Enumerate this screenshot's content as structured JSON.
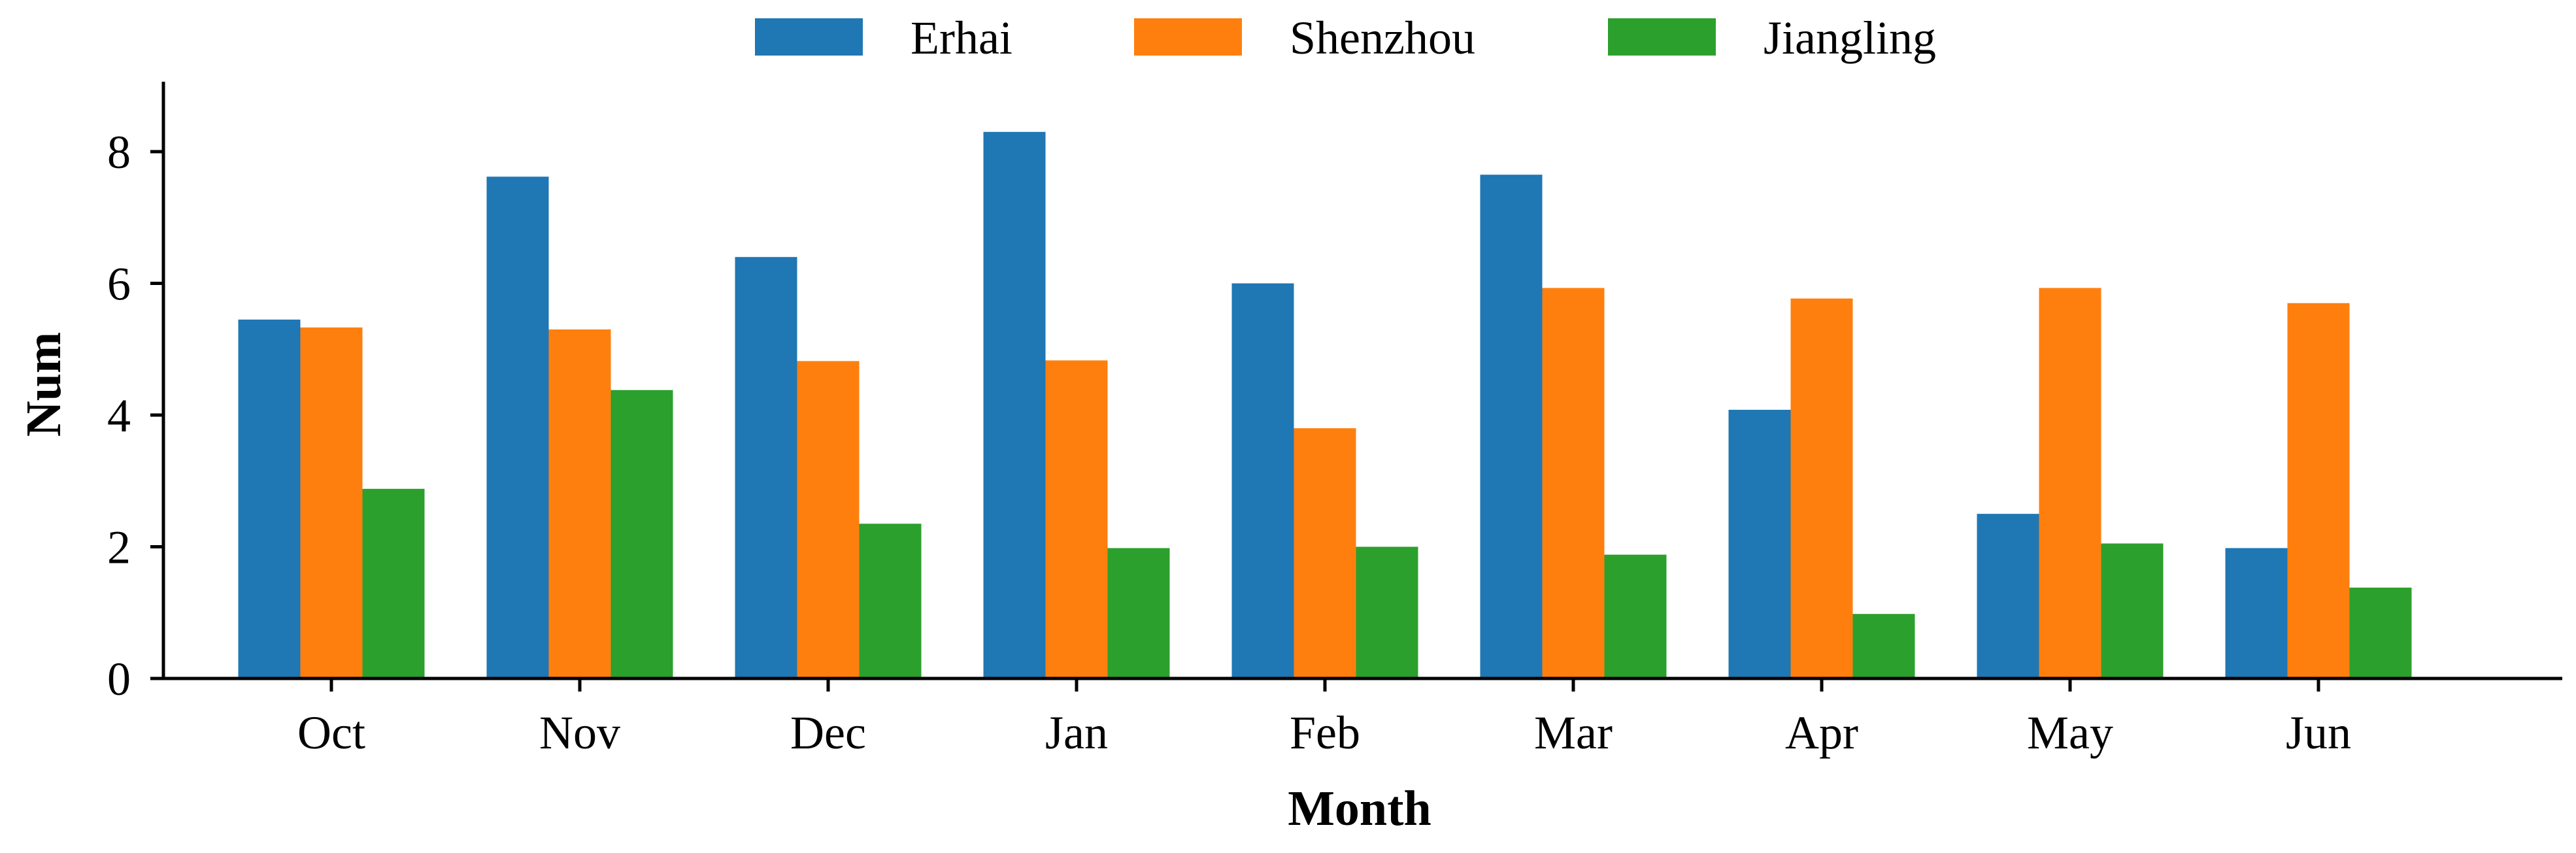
{
  "chart_data": {
    "type": "bar",
    "title": "",
    "xlabel": "Month",
    "ylabel": "Num",
    "categories": [
      "Oct",
      "Nov",
      "Dec",
      "Jan",
      "Feb",
      "Mar",
      "Apr",
      "May",
      "Jun"
    ],
    "series": [
      {
        "name": "Erhai",
        "color": "#1f77b4",
        "values": [
          5.45,
          7.62,
          6.4,
          8.3,
          6.0,
          7.65,
          4.08,
          2.5,
          1.98
        ]
      },
      {
        "name": "Shenzhou",
        "color": "#ff7f0e",
        "values": [
          5.33,
          5.3,
          4.82,
          4.83,
          3.8,
          5.93,
          5.77,
          5.93,
          5.7
        ]
      },
      {
        "name": "Jiangling",
        "color": "#2ca02c",
        "values": [
          2.88,
          4.38,
          2.35,
          1.98,
          2.0,
          1.88,
          0.98,
          2.05,
          1.38
        ]
      }
    ],
    "y_ticks": [
      0,
      2,
      4,
      6,
      8
    ],
    "ylim": [
      0,
      9
    ],
    "grid": false,
    "legend_position": "top-center"
  }
}
